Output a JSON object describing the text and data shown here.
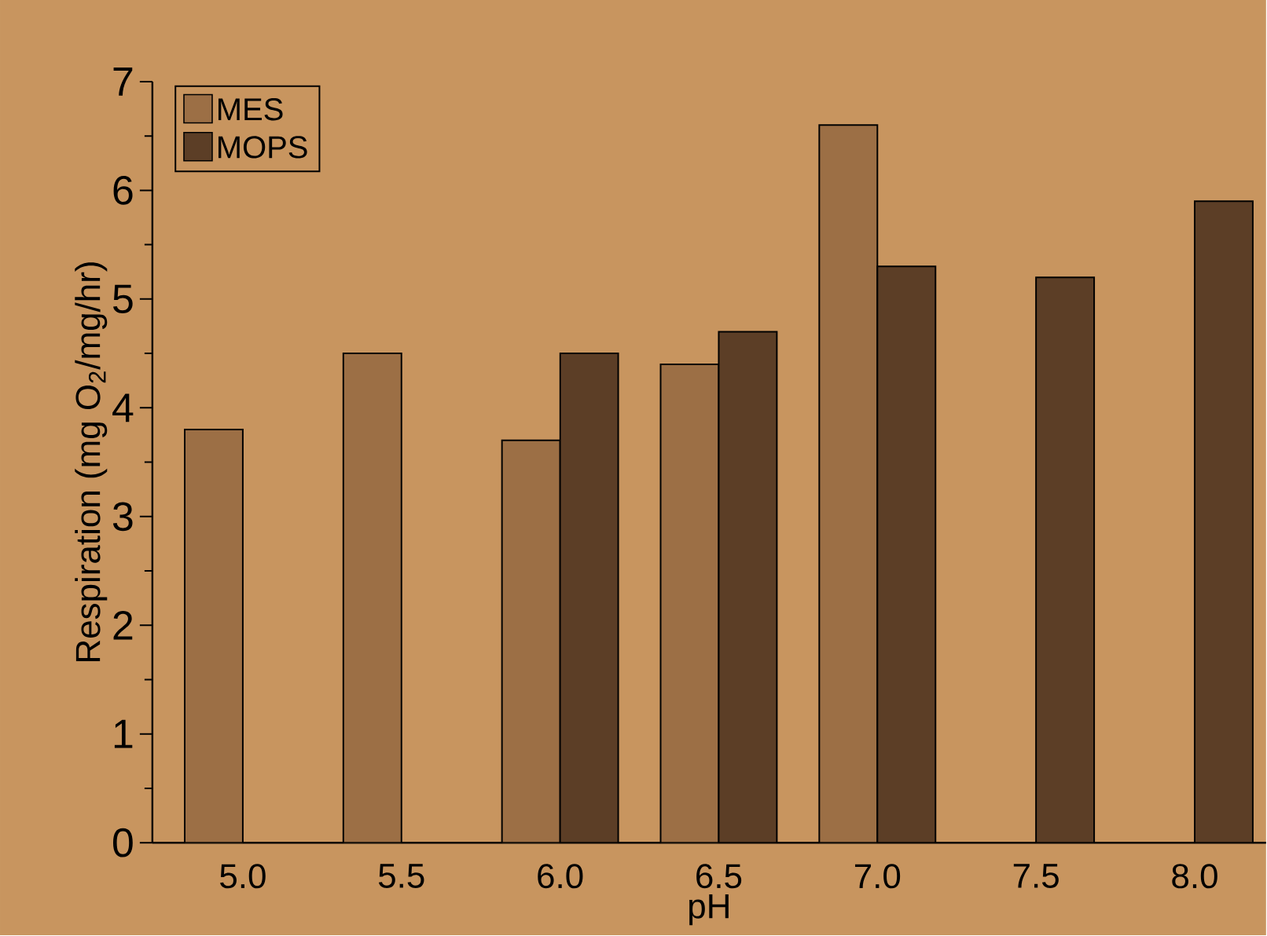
{
  "chart_data": {
    "type": "bar",
    "xlabel": "pH",
    "ylabel": "Respiration (mg O$_{2}$/mg/hr)",
    "categories": [
      "5.0",
      "5.5",
      "6.0",
      "6.5",
      "7.0",
      "7.5",
      "8.0"
    ],
    "series": [
      {
        "name": "MES",
        "color": "#9c6f45",
        "values": [
          3.8,
          4.5,
          3.7,
          4.4,
          6.6,
          null,
          null
        ]
      },
      {
        "name": "MOPS",
        "color": "#5c3e26",
        "values": [
          null,
          null,
          4.5,
          4.7,
          5.3,
          5.2,
          5.9
        ]
      }
    ],
    "ylim": [
      0,
      7
    ],
    "yticks": [
      0,
      1,
      2,
      3,
      4,
      5,
      6,
      7
    ],
    "legend": "top left"
  }
}
